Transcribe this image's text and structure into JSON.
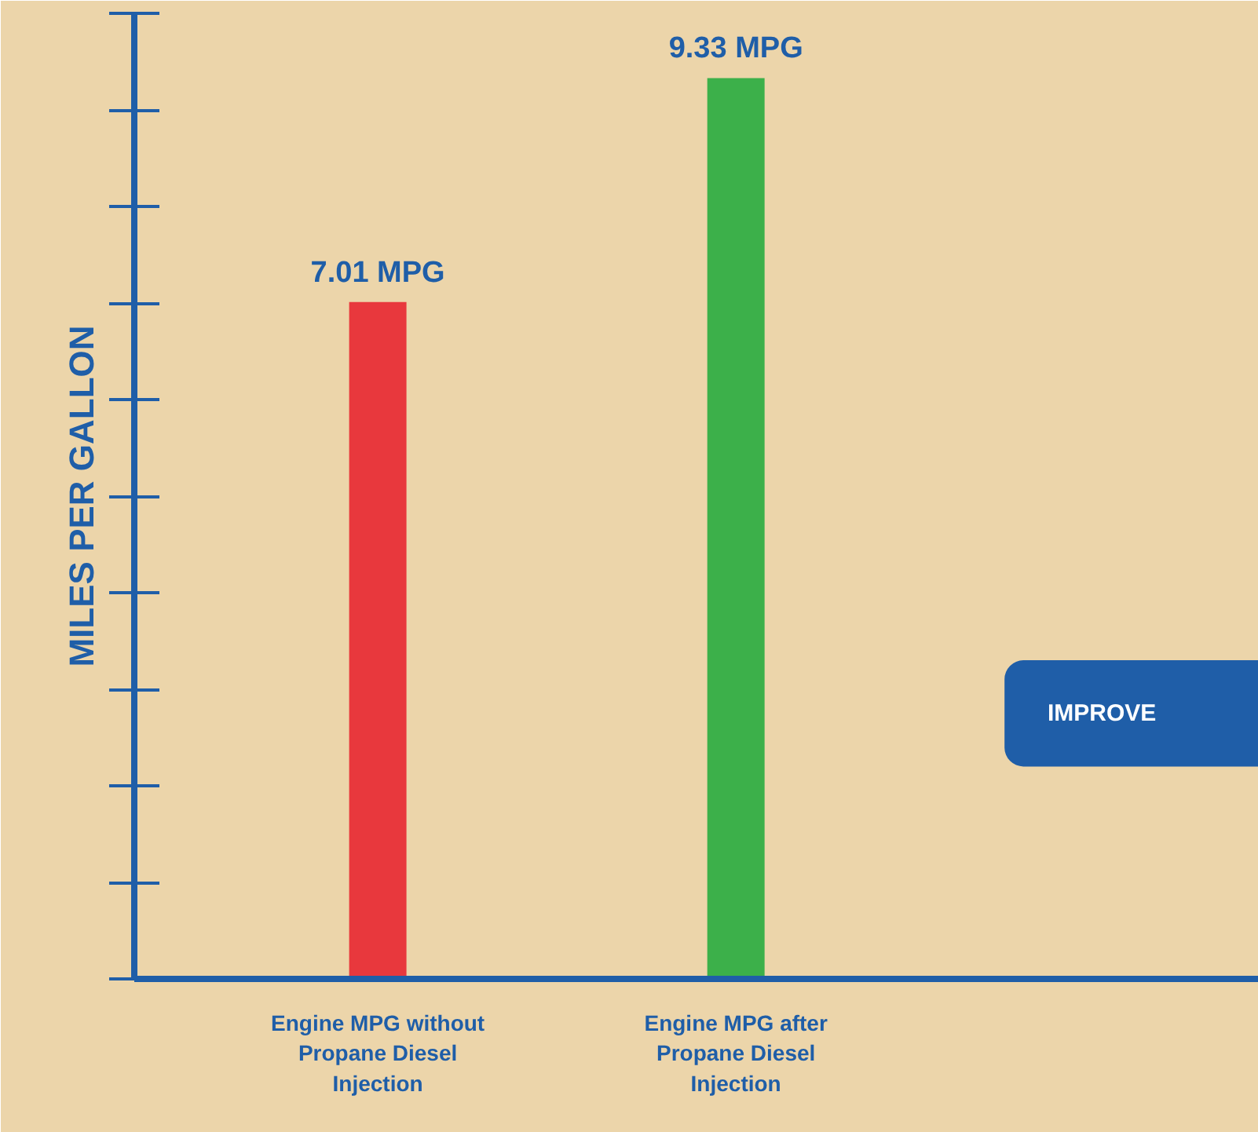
{
  "chart_data": {
    "type": "bar",
    "ylabel": "MILES PER GALLON",
    "categories": [
      "Engine MPG without Propane Diesel Injection",
      "Engine MPG after Propane Diesel Injection"
    ],
    "values": [
      7.01,
      9.33
    ],
    "colors": [
      "#e8383d",
      "#3cb04a"
    ],
    "value_labels": [
      "7.01 MPG",
      "9.33 MPG"
    ],
    "ylim": [
      0,
      10
    ],
    "tick_labels": "x",
    "annotations": [
      "IMPROVE"
    ]
  }
}
